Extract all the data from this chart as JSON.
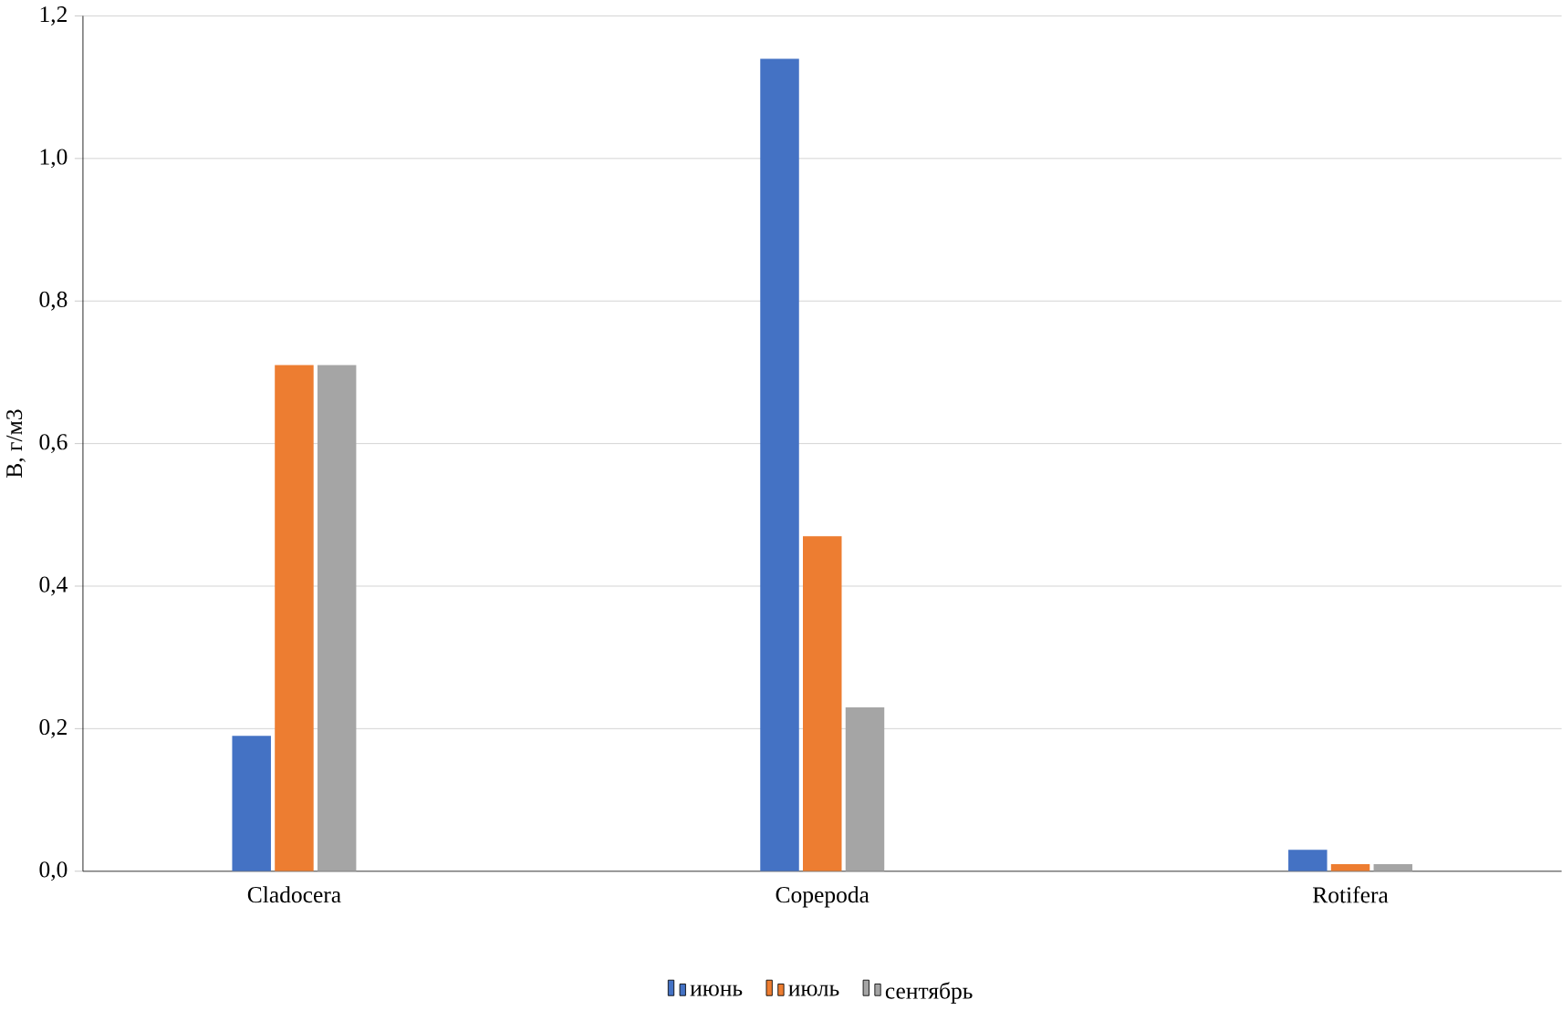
{
  "chart_data": {
    "type": "bar",
    "ylabel": "B, г/м3",
    "categories": [
      "Cladocera",
      "Copepoda",
      "Rotifera"
    ],
    "series": [
      {
        "name": "июнь",
        "color": "#4472c4",
        "values": [
          0.19,
          1.14,
          0.03
        ]
      },
      {
        "name": "июль",
        "color": "#ed7d31",
        "values": [
          0.71,
          0.47,
          0.01
        ]
      },
      {
        "name": "сентябрь",
        "color": "#a5a5a5",
        "values": [
          0.71,
          0.23,
          0.01
        ]
      }
    ],
    "ylim": [
      0,
      1.2
    ],
    "yticks": [
      {
        "value": 0,
        "label": "0,0"
      },
      {
        "value": 0.2,
        "label": "0,2"
      },
      {
        "value": 0.4,
        "label": "0,4"
      },
      {
        "value": 0.6,
        "label": "0,6"
      },
      {
        "value": 0.8,
        "label": "0,8"
      },
      {
        "value": 1.0,
        "label": "1,0"
      },
      {
        "value": 1.2,
        "label": "1,2"
      }
    ],
    "grid": "y",
    "legend": "bottom"
  }
}
